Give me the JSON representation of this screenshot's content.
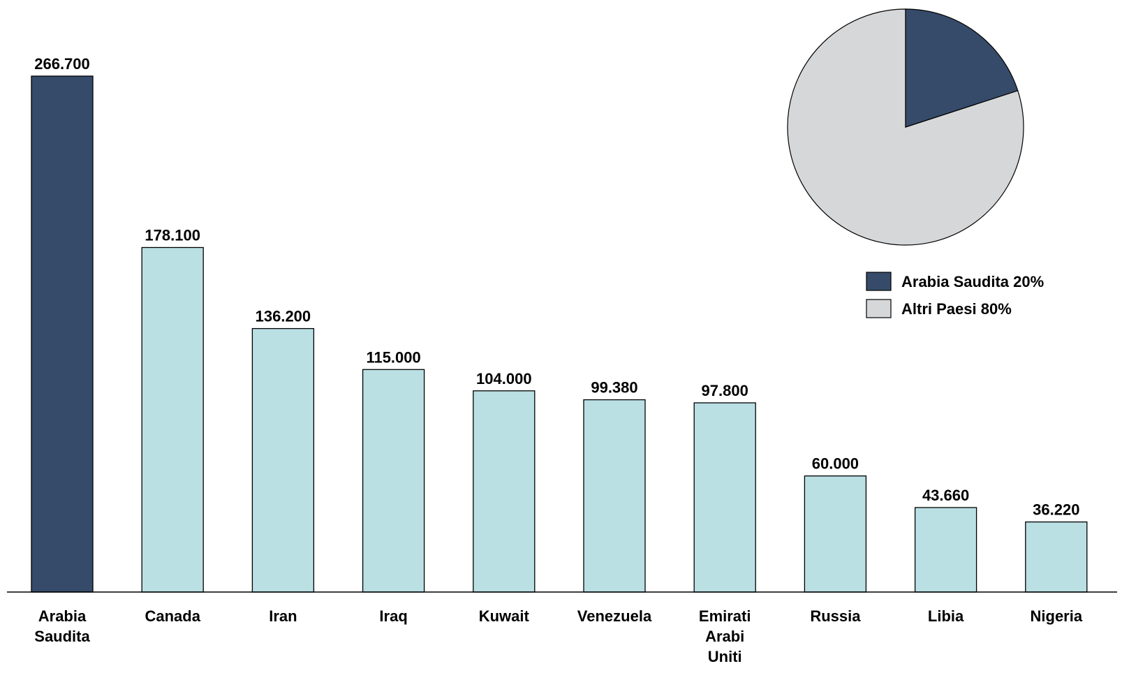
{
  "colors": {
    "highlight": "#364b6a",
    "others": "#bae0e4",
    "pie_rest": "#d6d7d9"
  },
  "chart_data": [
    {
      "type": "bar",
      "categories": [
        "Arabia Saudita",
        "Canada",
        "Iran",
        "Iraq",
        "Kuwait",
        "Venezuela",
        "Emirati Arabi Uniti",
        "Russia",
        "Libia",
        "Nigeria"
      ],
      "category_lines": [
        [
          "Arabia",
          "Saudita"
        ],
        [
          "Canada"
        ],
        [
          "Iran"
        ],
        [
          "Iraq"
        ],
        [
          "Kuwait"
        ],
        [
          "Venezuela"
        ],
        [
          "Emirati",
          "Arabi",
          "Uniti"
        ],
        [
          "Russia"
        ],
        [
          "Libia"
        ],
        [
          "Nigeria"
        ]
      ],
      "values": [
        266700,
        178100,
        136200,
        115000,
        104000,
        99380,
        97800,
        60000,
        43660,
        36220
      ],
      "value_labels": [
        "266.700",
        "178.100",
        "136.200",
        "115.000",
        "104.000",
        "99.380",
        "97.800",
        "60.000",
        "43.660",
        "36.220"
      ],
      "highlight_index": 0,
      "title": "",
      "xlabel": "",
      "ylabel": "",
      "ylim": [
        0,
        266700
      ],
      "grid": false
    },
    {
      "type": "pie",
      "slices": [
        {
          "label": "Arabia Saudita",
          "value": 20,
          "legend": "Arabia Saudita 20%"
        },
        {
          "label": "Altri Paesi",
          "value": 80,
          "legend": "Altri Paesi 80%"
        }
      ],
      "legend_position": "below"
    }
  ]
}
